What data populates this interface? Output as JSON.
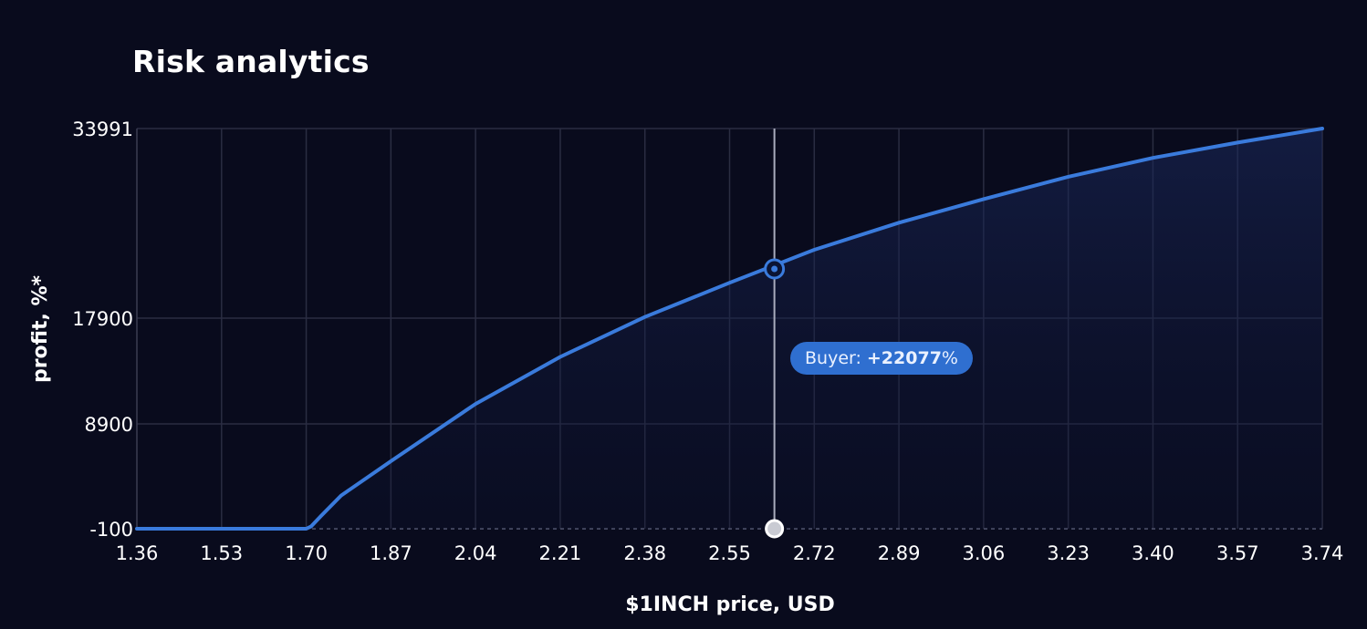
{
  "title": "Risk analytics",
  "chart_data": {
    "type": "area",
    "xlabel": "$1INCH price, USD",
    "ylabel": "profit, %*",
    "x_ticks": [
      "1.36",
      "1.53",
      "1.70",
      "1.87",
      "2.04",
      "2.21",
      "2.38",
      "2.55",
      "2.72",
      "2.89",
      "3.06",
      "3.23",
      "3.40",
      "3.57",
      "3.74"
    ],
    "y_ticks": [
      "-100",
      "8900",
      "17900",
      "33991"
    ],
    "xlim": [
      1.36,
      3.74
    ],
    "ylim": [
      -100,
      33991
    ],
    "grid": true,
    "series": [
      {
        "x": [
          1.36,
          1.53,
          1.7,
          1.71,
          1.73,
          1.77,
          1.87,
          2.04,
          2.21,
          2.38,
          2.55,
          2.72,
          2.89,
          3.06,
          3.23,
          3.4,
          3.57,
          3.74
        ],
        "y": [
          -100,
          -100,
          -100,
          100,
          1000,
          2750,
          5700,
          10600,
          14600,
          18000,
          20900,
          23700,
          26000,
          28000,
          29900,
          31500,
          32800,
          33991
        ],
        "color": "#3a7bdc"
      }
    ],
    "marker": {
      "x": 2.64,
      "y": 22077,
      "label": "Buyer:",
      "value": "+22077",
      "unit": "%"
    }
  },
  "colors": {
    "background": "#090b1d",
    "grid": "#2a2d42",
    "line": "#3a7bdc",
    "tooltip": "#2f6fd0"
  }
}
